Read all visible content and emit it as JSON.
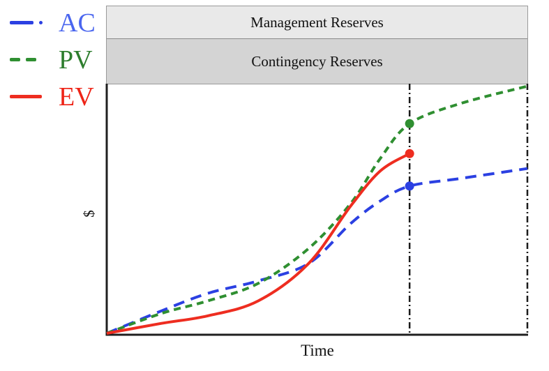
{
  "legend": {
    "items": [
      {
        "label": "AC",
        "color": "#2b40e2",
        "text_color": "#4a66ef",
        "style": "dash-dot"
      },
      {
        "label": "PV",
        "color": "#2f8f31",
        "text_color": "#2d7d2d",
        "style": "dashed"
      },
      {
        "label": "EV",
        "color": "#ee2d20",
        "text_color": "#ee2417",
        "style": "solid"
      }
    ]
  },
  "reserves": {
    "management_label": "Management Reserves",
    "contingency_label": "Contingency Reserves",
    "management_bg": "#e9e9e9",
    "contingency_bg": "#d4d4d4"
  },
  "axes": {
    "y_label": "$",
    "x_label": "Time"
  },
  "chart_data": {
    "type": "line",
    "title": "",
    "xlabel": "Time",
    "ylabel": "$",
    "x_axis": {
      "range": [
        0,
        1
      ],
      "ticks": "none"
    },
    "y_axis": {
      "range": [
        0,
        100
      ],
      "ticks": "none",
      "note": "dollar axis unlabeled; values are % of plot height"
    },
    "grid": false,
    "legend_position": "outside-top-left",
    "annotations": {
      "bands_above_plot": [
        "Management Reserves",
        "Contingency Reserves"
      ],
      "status_date_x": 0.72,
      "completion_x": 1.0,
      "endpoint_markers": [
        {
          "series": "PV",
          "x": 0.72,
          "v": 84
        },
        {
          "series": "EV",
          "x": 0.72,
          "v": 72
        },
        {
          "series": "AC",
          "x": 0.72,
          "v": 59
        }
      ]
    },
    "series": [
      {
        "name": "AC",
        "color": "#2b40e2",
        "dash": "16,10",
        "width": 4,
        "x": [
          0,
          0.13,
          0.24,
          0.36,
          0.48,
          0.58,
          0.65,
          0.72,
          0.84,
          1.0
        ],
        "values": [
          0,
          9,
          16,
          21,
          28,
          44,
          53,
          59,
          62,
          66
        ],
        "marker": {
          "x": 0.72,
          "v": 59
        }
      },
      {
        "name": "PV",
        "color": "#2f8f31",
        "dash": "10,7",
        "width": 4,
        "x": [
          0,
          0.13,
          0.24,
          0.36,
          0.48,
          0.58,
          0.65,
          0.72,
          0.84,
          1.0
        ],
        "values": [
          0,
          8,
          13,
          20,
          34,
          52,
          70,
          84,
          92,
          99
        ],
        "marker": {
          "x": 0.72,
          "v": 84
        }
      },
      {
        "name": "EV",
        "color": "#ee2d20",
        "dash": "",
        "width": 4,
        "x": [
          0,
          0.13,
          0.24,
          0.36,
          0.48,
          0.58,
          0.65,
          0.72
        ],
        "values": [
          0,
          4,
          7,
          13,
          28,
          51,
          65,
          72
        ],
        "marker": {
          "x": 0.72,
          "v": 72
        }
      }
    ],
    "vlines": [
      {
        "name": "status-date-line",
        "x": 0.72,
        "color": "#1b1b1b",
        "dash": "9,4,2,4",
        "width": 2.5
      },
      {
        "name": "completion-date-line",
        "x": 1.0,
        "color": "#1b1b1b",
        "dash": "9,4,2,4",
        "width": 2.5
      }
    ],
    "axis_color": "#1f1f1f"
  }
}
